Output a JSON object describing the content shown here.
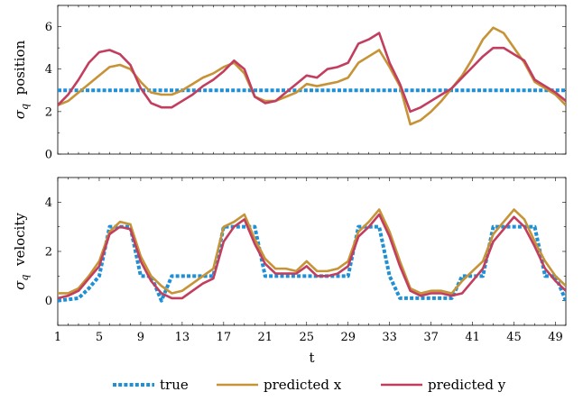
{
  "chart_data": [
    {
      "type": "line",
      "ylabel_symbol": "σ",
      "ylabel_sub": "q",
      "ylabel_word": "position",
      "xlim": [
        1,
        50
      ],
      "ylim": [
        0,
        7
      ],
      "yticks": [
        0,
        2,
        4,
        6
      ],
      "ytick_labels": [
        "0",
        "2",
        "4",
        "6"
      ],
      "grid": false,
      "series": [
        {
          "name": "true",
          "color": "#1f8fd6",
          "dash": true,
          "y": [
            3,
            3,
            3,
            3,
            3,
            3,
            3,
            3,
            3,
            3,
            3,
            3,
            3,
            3,
            3,
            3,
            3,
            3,
            3,
            3,
            3,
            3,
            3,
            3,
            3,
            3,
            3,
            3,
            3,
            3,
            3,
            3,
            3,
            3,
            3,
            3,
            3,
            3,
            3,
            3,
            3,
            3,
            3,
            3,
            3,
            3,
            3,
            3,
            3,
            3
          ]
        },
        {
          "name": "predicted x",
          "color": "#c69336",
          "dash": false,
          "y": [
            2.3,
            2.5,
            2.9,
            3.3,
            3.7,
            4.1,
            4.2,
            4.0,
            3.4,
            2.9,
            2.8,
            2.8,
            3.0,
            3.3,
            3.6,
            3.8,
            4.1,
            4.3,
            3.8,
            2.7,
            2.5,
            2.5,
            2.7,
            2.9,
            3.3,
            3.2,
            3.3,
            3.4,
            3.6,
            4.3,
            4.6,
            4.9,
            4.1,
            3.2,
            1.4,
            1.6,
            2.0,
            2.5,
            3.1,
            3.7,
            4.5,
            5.4,
            5.95,
            5.7,
            5.0,
            4.3,
            3.4,
            3.1,
            2.8,
            2.3
          ]
        },
        {
          "name": "predicted y",
          "color": "#c23e5e",
          "dash": false,
          "y": [
            2.3,
            2.8,
            3.5,
            4.3,
            4.8,
            4.9,
            4.7,
            4.2,
            3.1,
            2.4,
            2.2,
            2.2,
            2.5,
            2.8,
            3.2,
            3.5,
            3.9,
            4.4,
            4.0,
            2.7,
            2.4,
            2.5,
            2.9,
            3.3,
            3.7,
            3.6,
            4.0,
            4.1,
            4.3,
            5.2,
            5.4,
            5.7,
            4.3,
            3.3,
            2.0,
            2.2,
            2.5,
            2.8,
            3.1,
            3.6,
            4.1,
            4.6,
            5.0,
            5.0,
            4.7,
            4.4,
            3.5,
            3.2,
            2.9,
            2.5
          ]
        }
      ]
    },
    {
      "type": "line",
      "ylabel_symbol": "σ",
      "ylabel_sub": "q",
      "ylabel_word": "velocity",
      "xlabel": "t",
      "xlim": [
        1,
        50
      ],
      "ylim": [
        -1,
        5
      ],
      "yticks": [
        0,
        2,
        4
      ],
      "ytick_labels": [
        "0",
        "2",
        "4"
      ],
      "xticks": [
        1,
        5,
        9,
        13,
        17,
        21,
        25,
        29,
        33,
        37,
        41,
        45,
        49
      ],
      "xtick_labels": [
        "1",
        "5",
        "9",
        "13",
        "17",
        "21",
        "25",
        "29",
        "33",
        "37",
        "41",
        "45",
        "49"
      ],
      "grid": false,
      "series": [
        {
          "name": "true",
          "color": "#1f8fd6",
          "dash": true,
          "y": [
            0,
            0.05,
            0.1,
            0.5,
            1.0,
            3.0,
            3.0,
            3.0,
            1.0,
            1.0,
            0,
            1.0,
            1.0,
            1.0,
            1.0,
            1.0,
            3.0,
            3.0,
            3.0,
            3.0,
            1.0,
            1.0,
            1.0,
            1.0,
            1.0,
            1.0,
            1.0,
            1.0,
            1.0,
            3.0,
            3.0,
            3.0,
            1.0,
            0.1,
            0.1,
            0.1,
            0.1,
            0.1,
            0.1,
            1.0,
            1.0,
            1.0,
            3.0,
            3.0,
            3.0,
            3.0,
            3.0,
            1.0,
            1.0,
            0
          ]
        },
        {
          "name": "predicted x",
          "color": "#c69336",
          "dash": false,
          "y": [
            0.3,
            0.3,
            0.5,
            1.0,
            1.6,
            2.8,
            3.2,
            3.1,
            1.8,
            1.0,
            0.6,
            0.3,
            0.4,
            0.7,
            1.0,
            1.3,
            3.0,
            3.2,
            3.5,
            2.5,
            1.7,
            1.3,
            1.3,
            1.2,
            1.6,
            1.2,
            1.2,
            1.3,
            1.6,
            2.8,
            3.2,
            3.7,
            2.8,
            1.6,
            0.5,
            0.3,
            0.4,
            0.4,
            0.3,
            0.8,
            1.2,
            1.6,
            2.7,
            3.2,
            3.7,
            3.3,
            2.4,
            1.6,
            1.0,
            0.6
          ]
        },
        {
          "name": "predicted y",
          "color": "#c23e5e",
          "dash": false,
          "y": [
            0.1,
            0.2,
            0.4,
            0.9,
            1.4,
            2.7,
            3.0,
            2.9,
            1.6,
            0.8,
            0.3,
            0.1,
            0.1,
            0.4,
            0.7,
            0.9,
            2.4,
            3.0,
            3.3,
            2.3,
            1.5,
            1.1,
            1.1,
            1.1,
            1.4,
            1.0,
            1.0,
            1.1,
            1.4,
            2.6,
            3.0,
            3.5,
            2.6,
            1.4,
            0.4,
            0.2,
            0.3,
            0.3,
            0.2,
            0.3,
            0.8,
            1.3,
            2.4,
            2.9,
            3.4,
            3.0,
            2.2,
            1.3,
            0.8,
            0.4
          ]
        }
      ]
    }
  ],
  "legend": {
    "placement": "bottom",
    "items": [
      {
        "label": "true",
        "color": "#1f8fd6",
        "dash": true
      },
      {
        "label": "predicted x",
        "color": "#c69336",
        "dash": false
      },
      {
        "label": "predicted y",
        "color": "#c23e5e",
        "dash": false
      }
    ]
  }
}
